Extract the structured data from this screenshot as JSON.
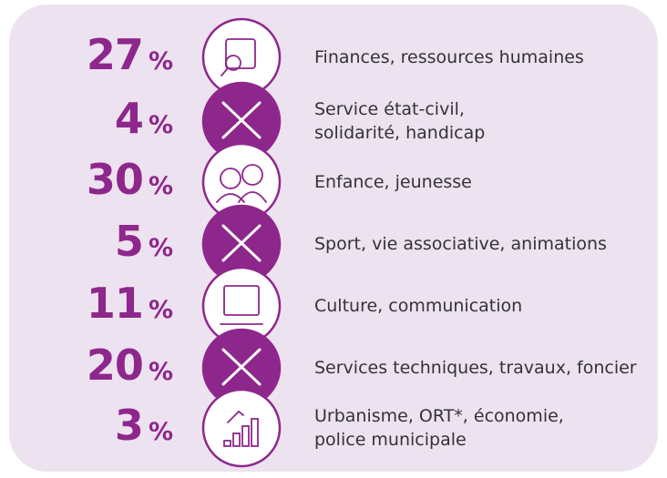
{
  "unit": "%",
  "items": [
    {
      "value": 27,
      "lines": [
        "Finances, ressources humaines"
      ]
    },
    {
      "value": 4,
      "lines": [
        "Service état-civil,",
        "solidarité, handicap"
      ]
    },
    {
      "value": 30,
      "lines": [
        "Enfance, jeunesse"
      ]
    },
    {
      "value": 5,
      "lines": [
        "Sport, vie associative, animations"
      ]
    },
    {
      "value": 11,
      "lines": [
        "Culture, communication"
      ]
    },
    {
      "value": 20,
      "lines": [
        "Services techniques, travaux, foncier"
      ]
    },
    {
      "value": 3,
      "lines": [
        "Urbanisme, ORT*, économie,",
        "police municipale"
      ]
    }
  ]
}
